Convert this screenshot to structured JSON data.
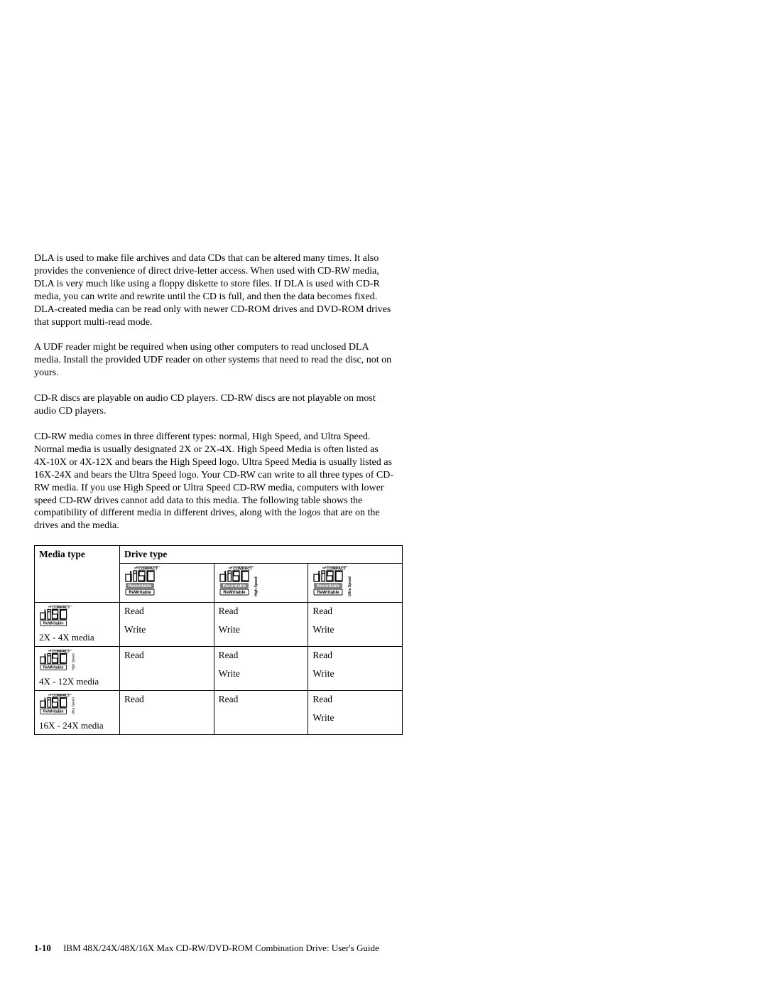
{
  "paragraphs": {
    "p1": "DLA is used to make file archives and data CDs that can be altered many times. It also provides the convenience of direct drive-letter access. When used with CD-RW media, DLA is very much like using a floppy diskette to store files. If DLA is used with CD-R media, you can write and rewrite until the CD is full, and then the data becomes fixed. DLA-created media can be read only with newer CD-ROM drives and DVD-ROM drives that support multi-read mode.",
    "p2": "A UDF reader might be required when using other computers to read unclosed DLA media. Install the provided UDF reader on other systems that need to read the disc, not on yours.",
    "p3": "CD-R discs are playable on audio CD players. CD-RW discs are not playable on most audio CD players.",
    "p4": "CD-RW media comes in three different types: normal, High Speed, and Ultra Speed. Normal media is usually designated 2X or 2X-4X. High Speed Media is often listed as 4X-10X or 4X-12X and bears the High Speed logo. Ultra Speed Media is usually listed as 16X-24X and bears the Ultra Speed logo. Your CD-RW can write to all three types of CD-RW media. If you use High Speed or Ultra Speed CD-RW media, computers with lower speed CD-RW drives cannot add data to this media. The following table shows the compatibility of different media in different drives, along with the logos that are on the drives and the media."
  },
  "table": {
    "header": {
      "media_type": "Media type",
      "drive_type": "Drive type"
    },
    "drive_logos": [
      {
        "variant": "normal",
        "side_text": ""
      },
      {
        "variant": "high_speed",
        "side_text": "High Speed"
      },
      {
        "variant": "ultra_speed",
        "side_text": "Ultra Speed"
      }
    ],
    "rows": [
      {
        "media_logo_variant": "normal",
        "media_side_text": "",
        "media_label": "2X - 4X media",
        "cells": [
          {
            "read": "Read",
            "write": "Write"
          },
          {
            "read": "Read",
            "write": "Write"
          },
          {
            "read": "Read",
            "write": "Write"
          }
        ]
      },
      {
        "media_logo_variant": "high_speed",
        "media_side_text": "High Speed",
        "media_label": "4X - 12X media",
        "cells": [
          {
            "read": "Read",
            "write": ""
          },
          {
            "read": "Read",
            "write": "Write"
          },
          {
            "read": "Read",
            "write": "Write"
          }
        ]
      },
      {
        "media_logo_variant": "ultra_speed",
        "media_side_text": "Ultra Speed",
        "media_label": "16X - 24X media",
        "cells": [
          {
            "read": "Read",
            "write": ""
          },
          {
            "read": "Read",
            "write": ""
          },
          {
            "read": "Read",
            "write": "Write"
          }
        ]
      }
    ]
  },
  "footer": {
    "page_number": "1-10",
    "title": "IBM 48X/24X/48X/16X Max CD-RW/DVD-ROM Combination Drive:  User's Guide"
  },
  "logo_style": {
    "compact_text": "COMPACT",
    "disc_text": "disc",
    "recordable_text": "Recordable",
    "rewritable_text": "ReWritable",
    "scale_header": 1.0,
    "scale_media": 0.92,
    "colors": {
      "stroke": "#000000",
      "fill_pill": "#808080",
      "fill_pill_text": "#ffffff",
      "fill_box": "#ffffff"
    }
  }
}
